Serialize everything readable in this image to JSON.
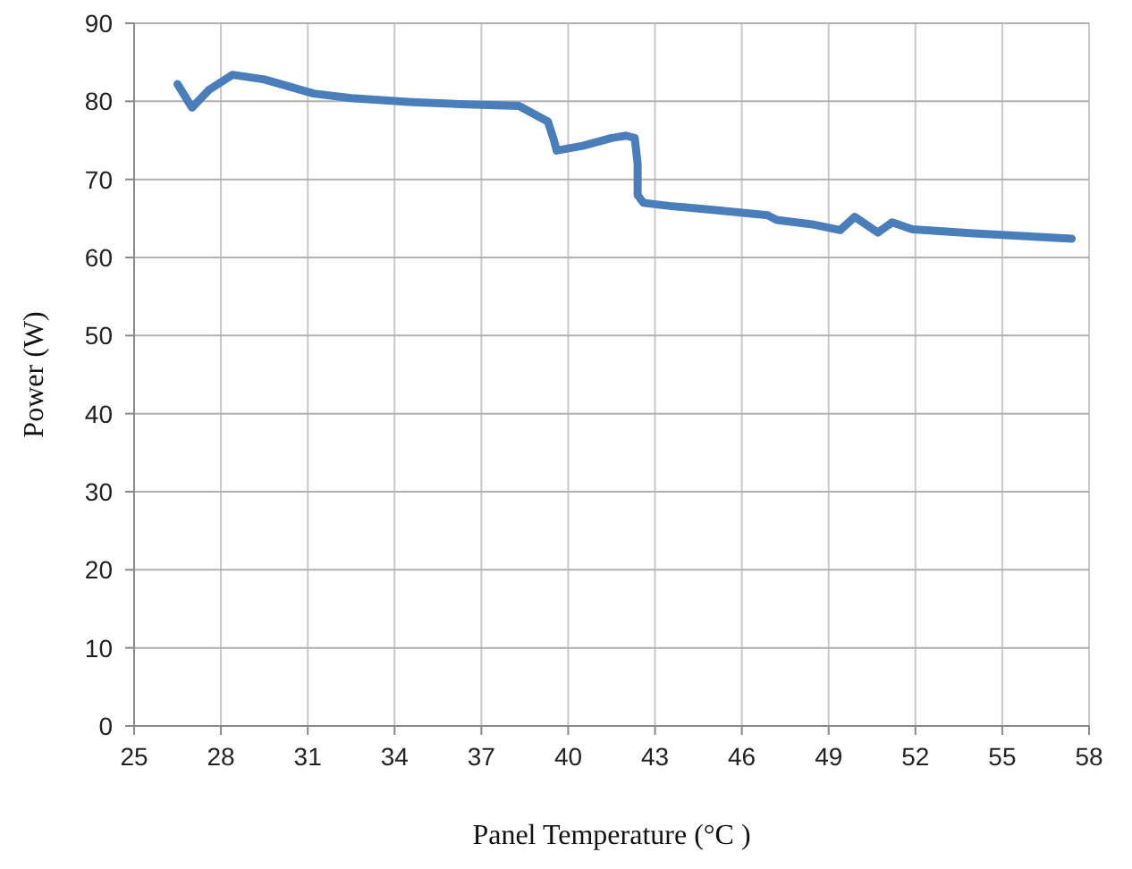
{
  "chart_data": {
    "type": "line",
    "xlabel": "Panel Temperature (°C )",
    "ylabel": "Power (W)",
    "xlim": [
      25,
      58
    ],
    "xticks": [
      25,
      28,
      31,
      34,
      37,
      40,
      43,
      46,
      49,
      52,
      55,
      58
    ],
    "ylim": [
      0,
      90
    ],
    "yticks": [
      0,
      10,
      20,
      30,
      40,
      50,
      60,
      70,
      80,
      90
    ],
    "grid": true,
    "line_style": "solid",
    "series": [
      {
        "color": "#4a7ebb",
        "x": [
          26.5,
          27.0,
          27.6,
          28.4,
          29.5,
          31.2,
          32.5,
          34.6,
          36.5,
          38.3,
          38.9,
          39.3,
          39.5,
          39.6,
          40.5,
          41.5,
          42.0,
          42.3,
          42.4,
          42.4,
          42.6,
          43.5,
          45,
          46.9,
          47.2,
          48.5,
          49.4,
          49.9,
          50.7,
          51.2,
          51.9,
          54,
          57.4
        ],
        "values": [
          82.2,
          79.2,
          81.5,
          83.4,
          82.8,
          81.0,
          80.4,
          79.9,
          79.6,
          79.4,
          78.2,
          77.4,
          75.1,
          73.7,
          74.3,
          75.3,
          75.6,
          75.3,
          72,
          68,
          67.0,
          66.6,
          66.1,
          65.4,
          64.8,
          64.2,
          63.5,
          65.2,
          63.2,
          64.5,
          63.6,
          63.1,
          62.4
        ]
      }
    ]
  }
}
